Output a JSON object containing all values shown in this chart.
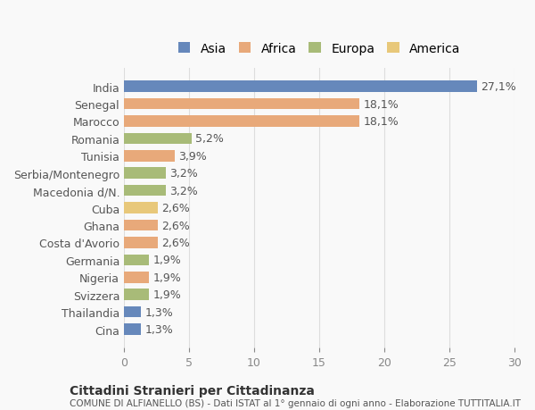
{
  "categories": [
    "India",
    "Senegal",
    "Marocco",
    "Romania",
    "Tunisia",
    "Serbia/Montenegro",
    "Macedonia d/N.",
    "Cuba",
    "Ghana",
    "Costa d'Avorio",
    "Germania",
    "Nigeria",
    "Svizzera",
    "Thailandia",
    "Cina"
  ],
  "values": [
    27.1,
    18.1,
    18.1,
    5.2,
    3.9,
    3.2,
    3.2,
    2.6,
    2.6,
    2.6,
    1.9,
    1.9,
    1.9,
    1.3,
    1.3
  ],
  "labels": [
    "27,1%",
    "18,1%",
    "18,1%",
    "5,2%",
    "3,9%",
    "3,2%",
    "3,2%",
    "2,6%",
    "2,6%",
    "2,6%",
    "1,9%",
    "1,9%",
    "1,9%",
    "1,3%",
    "1,3%"
  ],
  "continents": [
    "Asia",
    "Africa",
    "Africa",
    "Europa",
    "Africa",
    "Europa",
    "Europa",
    "America",
    "Africa",
    "Africa",
    "Europa",
    "Africa",
    "Europa",
    "Asia",
    "Asia"
  ],
  "colors": {
    "Asia": "#6688bb",
    "Africa": "#e8a97a",
    "Europa": "#a8bb78",
    "America": "#e8c87a"
  },
  "legend_order": [
    "Asia",
    "Africa",
    "Europa",
    "America"
  ],
  "title1": "Cittadini Stranieri per Cittadinanza",
  "title2": "COMUNE DI ALFIANELLO (BS) - Dati ISTAT al 1° gennaio di ogni anno - Elaborazione TUTTITALIA.IT",
  "xlim": [
    0,
    30
  ],
  "xticks": [
    0,
    5,
    10,
    15,
    20,
    25,
    30
  ],
  "bg_color": "#f9f9f9",
  "bar_height": 0.65,
  "label_fontsize": 9,
  "tick_label_fontsize": 9
}
